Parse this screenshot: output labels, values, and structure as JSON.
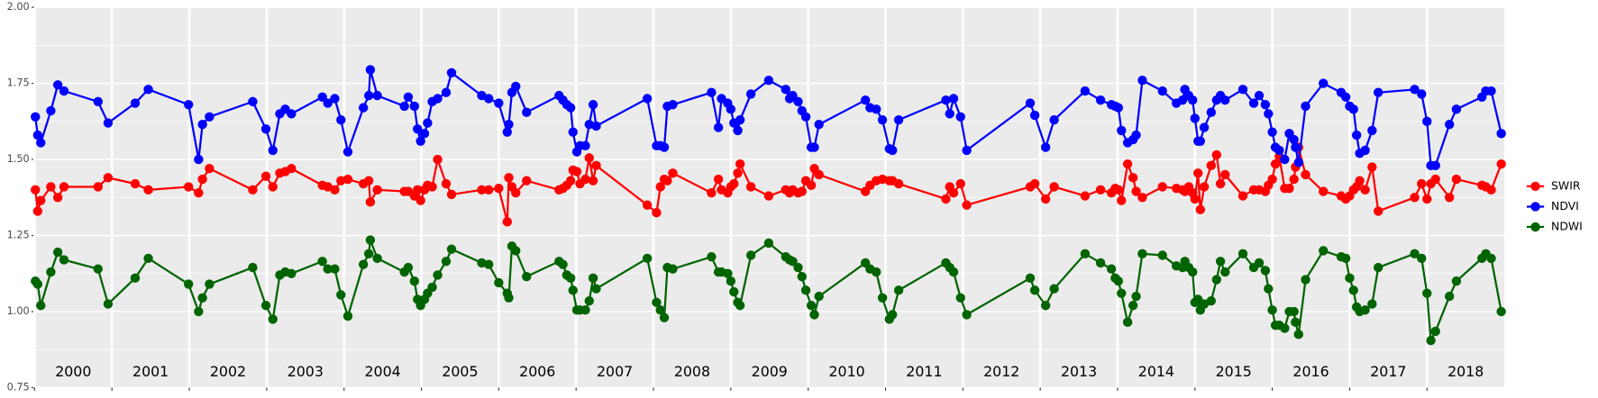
{
  "chart_data": {
    "type": "line",
    "x": [
      2000.01,
      2000.04,
      2000.08,
      2000.21,
      2000.3,
      2000.38,
      2000.82,
      2000.95,
      2001.3,
      2001.47,
      2001.99,
      2002.12,
      2002.17,
      2002.26,
      2002.82,
      2002.99,
      2003.08,
      2003.17,
      2003.24,
      2003.32,
      2003.72,
      2003.79,
      2003.88,
      2003.96,
      2004.05,
      2004.25,
      2004.32,
      2004.34,
      2004.43,
      2004.78,
      2004.83,
      2004.91,
      2004.95,
      2004.99,
      2005.04,
      2005.08,
      2005.14,
      2005.21,
      2005.32,
      2005.39,
      2005.78,
      2005.87,
      2006,
      2006.11,
      2006.13,
      2006.17,
      2006.22,
      2006.36,
      2006.78,
      2006.83,
      2006.88,
      2006.93,
      2006.96,
      2007.01,
      2007.05,
      2007.12,
      2007.17,
      2007.22,
      2007.26,
      2007.92,
      2008.04,
      2008.09,
      2008.14,
      2008.18,
      2008.25,
      2008.75,
      2008.84,
      2008.88,
      2008.96,
      2009,
      2009.04,
      2009.09,
      2009.12,
      2009.26,
      2009.49,
      2009.71,
      2009.76,
      2009.8,
      2009.87,
      2009.92,
      2009.97,
      2010.04,
      2010.08,
      2010.14,
      2010.74,
      2010.8,
      2010.88,
      2010.96,
      2011.05,
      2011.09,
      2011.17,
      2011.78,
      2011.83,
      2011.88,
      2011.97,
      2012.05,
      2012.87,
      2012.93,
      2013.07,
      2013.18,
      2013.58,
      2013.78,
      2013.92,
      2013.97,
      2014.01,
      2014.05,
      2014.13,
      2014.2,
      2014.24,
      2014.32,
      2014.58,
      2014.76,
      2014.84,
      2014.87,
      2014.92,
      2014.97,
      2015,
      2015.04,
      2015.07,
      2015.12,
      2015.21,
      2015.28,
      2015.33,
      2015.39,
      2015.62,
      2015.76,
      2015.83,
      2015.91,
      2015.95,
      2016,
      2016.04,
      2016.09,
      2016.16,
      2016.22,
      2016.28,
      2016.3,
      2016.34,
      2016.43,
      2016.66,
      2016.89,
      2016.95,
      2017,
      2017.05,
      2017.09,
      2017.13,
      2017.2,
      2017.29,
      2017.37,
      2017.84,
      2017.93,
      2018,
      2018.05,
      2018.11,
      2018.29,
      2018.38,
      2018.71,
      2018.76,
      2018.83,
      2018.96
    ],
    "series": [
      {
        "name": "SWIR",
        "color": "#ff0000",
        "values": [
          1.4,
          1.33,
          1.365,
          1.41,
          1.375,
          1.41,
          1.41,
          1.44,
          1.42,
          1.4,
          1.41,
          1.39,
          1.435,
          1.47,
          1.4,
          1.445,
          1.41,
          1.455,
          1.46,
          1.47,
          1.415,
          1.41,
          1.4,
          1.43,
          1.435,
          1.42,
          1.43,
          1.36,
          1.4,
          1.395,
          1.395,
          1.38,
          1.4,
          1.365,
          1.4,
          1.415,
          1.41,
          1.5,
          1.42,
          1.385,
          1.4,
          1.4,
          1.405,
          1.295,
          1.44,
          1.41,
          1.39,
          1.43,
          1.4,
          1.405,
          1.415,
          1.43,
          1.465,
          1.46,
          1.42,
          1.435,
          1.505,
          1.43,
          1.48,
          1.35,
          1.325,
          1.41,
          1.435,
          1.43,
          1.455,
          1.39,
          1.435,
          1.4,
          1.39,
          1.41,
          1.42,
          1.455,
          1.485,
          1.41,
          1.38,
          1.4,
          1.39,
          1.4,
          1.39,
          1.395,
          1.43,
          1.415,
          1.47,
          1.45,
          1.395,
          1.415,
          1.43,
          1.435,
          1.43,
          1.43,
          1.42,
          1.37,
          1.41,
          1.39,
          1.42,
          1.35,
          1.41,
          1.42,
          1.37,
          1.41,
          1.38,
          1.4,
          1.39,
          1.405,
          1.4,
          1.365,
          1.485,
          1.44,
          1.395,
          1.375,
          1.41,
          1.405,
          1.4,
          1.395,
          1.41,
          1.39,
          1.37,
          1.455,
          1.335,
          1.41,
          1.48,
          1.515,
          1.42,
          1.45,
          1.38,
          1.4,
          1.4,
          1.395,
          1.415,
          1.435,
          1.485,
          1.51,
          1.405,
          1.405,
          1.435,
          1.475,
          1.54,
          1.45,
          1.395,
          1.38,
          1.37,
          1.38,
          1.4,
          1.41,
          1.43,
          1.4,
          1.475,
          1.33,
          1.375,
          1.42,
          1.37,
          1.42,
          1.435,
          1.375,
          1.435,
          1.415,
          1.41,
          1.4,
          1.485
        ]
      },
      {
        "name": "NDVI",
        "color": "#0000ff",
        "values": [
          1.64,
          1.58,
          1.555,
          1.66,
          1.745,
          1.725,
          1.69,
          1.62,
          1.685,
          1.73,
          1.68,
          1.5,
          1.615,
          1.64,
          1.69,
          1.6,
          1.53,
          1.65,
          1.665,
          1.65,
          1.705,
          1.685,
          1.7,
          1.63,
          1.525,
          1.67,
          1.71,
          1.795,
          1.71,
          1.675,
          1.705,
          1.675,
          1.6,
          1.56,
          1.585,
          1.62,
          1.69,
          1.7,
          1.72,
          1.785,
          1.71,
          1.7,
          1.685,
          1.59,
          1.615,
          1.72,
          1.74,
          1.655,
          1.71,
          1.695,
          1.68,
          1.67,
          1.59,
          1.525,
          1.545,
          1.545,
          1.615,
          1.68,
          1.61,
          1.7,
          1.545,
          1.545,
          1.54,
          1.675,
          1.68,
          1.72,
          1.605,
          1.7,
          1.685,
          1.665,
          1.62,
          1.595,
          1.63,
          1.715,
          1.76,
          1.73,
          1.7,
          1.71,
          1.69,
          1.66,
          1.64,
          1.54,
          1.54,
          1.615,
          1.695,
          1.67,
          1.665,
          1.63,
          1.535,
          1.53,
          1.63,
          1.695,
          1.65,
          1.7,
          1.64,
          1.53,
          1.685,
          1.645,
          1.54,
          1.63,
          1.725,
          1.695,
          1.68,
          1.675,
          1.67,
          1.595,
          1.555,
          1.565,
          1.58,
          1.76,
          1.725,
          1.685,
          1.695,
          1.73,
          1.71,
          1.695,
          1.635,
          1.56,
          1.56,
          1.605,
          1.655,
          1.695,
          1.71,
          1.695,
          1.73,
          1.685,
          1.71,
          1.68,
          1.65,
          1.59,
          1.54,
          1.53,
          1.5,
          1.585,
          1.565,
          1.54,
          1.49,
          1.675,
          1.75,
          1.72,
          1.705,
          1.675,
          1.665,
          1.58,
          1.52,
          1.53,
          1.595,
          1.72,
          1.73,
          1.715,
          1.625,
          1.48,
          1.48,
          1.615,
          1.665,
          1.705,
          1.725,
          1.725,
          1.585
        ]
      },
      {
        "name": "NDWI",
        "color": "#006400",
        "values": [
          1.1,
          1.09,
          1.02,
          1.13,
          1.195,
          1.17,
          1.14,
          1.025,
          1.11,
          1.175,
          1.09,
          1.0,
          1.045,
          1.09,
          1.145,
          1.02,
          0.975,
          1.12,
          1.13,
          1.125,
          1.165,
          1.14,
          1.14,
          1.055,
          0.985,
          1.155,
          1.19,
          1.235,
          1.175,
          1.13,
          1.145,
          1.1,
          1.04,
          1.02,
          1.04,
          1.06,
          1.08,
          1.12,
          1.165,
          1.205,
          1.16,
          1.155,
          1.095,
          1.06,
          1.045,
          1.215,
          1.2,
          1.115,
          1.165,
          1.155,
          1.12,
          1.11,
          1.07,
          1.005,
          1.005,
          1.005,
          1.035,
          1.11,
          1.075,
          1.175,
          1.03,
          1.005,
          0.98,
          1.145,
          1.14,
          1.18,
          1.13,
          1.13,
          1.125,
          1.1,
          1.065,
          1.03,
          1.02,
          1.185,
          1.225,
          1.18,
          1.17,
          1.165,
          1.145,
          1.115,
          1.07,
          1.02,
          0.99,
          1.05,
          1.16,
          1.14,
          1.13,
          1.045,
          0.975,
          0.99,
          1.07,
          1.16,
          1.145,
          1.13,
          1.045,
          0.99,
          1.11,
          1.07,
          1.02,
          1.075,
          1.19,
          1.16,
          1.14,
          1.11,
          1.1,
          1.06,
          0.965,
          1.02,
          1.05,
          1.19,
          1.185,
          1.15,
          1.145,
          1.165,
          1.145,
          1.13,
          1.03,
          1.04,
          1.005,
          1.025,
          1.035,
          1.105,
          1.165,
          1.13,
          1.19,
          1.145,
          1.16,
          1.135,
          1.075,
          1.005,
          0.955,
          0.955,
          0.945,
          1.0,
          1.0,
          0.965,
          0.925,
          1.105,
          1.2,
          1.18,
          1.175,
          1.11,
          1.07,
          1.015,
          1.0,
          1.005,
          1.025,
          1.145,
          1.19,
          1.175,
          1.06,
          0.905,
          0.935,
          1.05,
          1.1,
          1.175,
          1.19,
          1.175,
          1.0
        ]
      }
    ],
    "xlim": [
      2000,
      2019
    ],
    "xticks": [
      2000,
      2001,
      2002,
      2003,
      2004,
      2005,
      2006,
      2007,
      2008,
      2009,
      2010,
      2011,
      2012,
      2013,
      2014,
      2015,
      2016,
      2017,
      2018
    ],
    "ylim": [
      0.75,
      2.0
    ],
    "yticks": [
      {
        "value": 0.75,
        "label": "0.75"
      },
      {
        "value": 1.0,
        "label": "1.00"
      },
      {
        "value": 1.25,
        "label": "1.25"
      },
      {
        "value": 1.5,
        "label": "1.50"
      },
      {
        "value": 1.75,
        "label": "1.75"
      },
      {
        "value": 2.0,
        "label": "2.00"
      }
    ],
    "grid": true,
    "legend": "right"
  }
}
